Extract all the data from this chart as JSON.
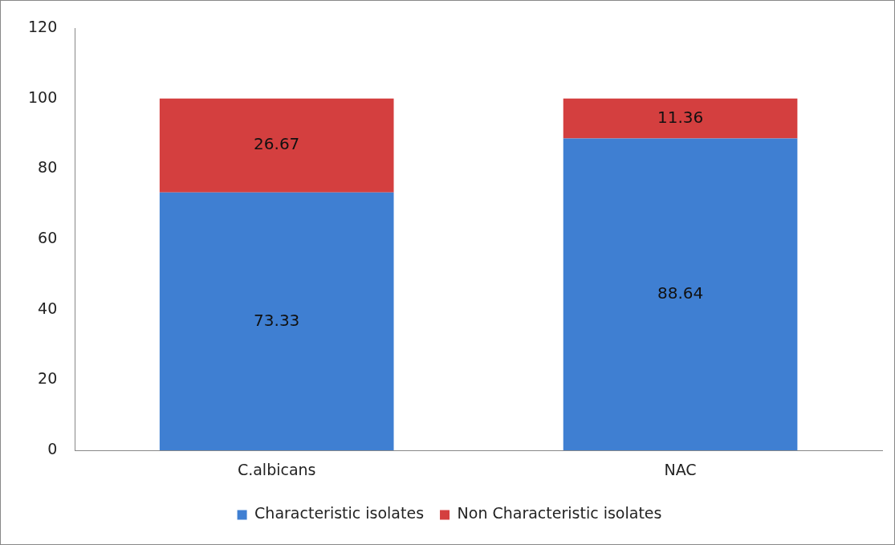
{
  "chart_data": {
    "type": "bar",
    "stacked": true,
    "categories": [
      "C.albicans",
      "NAC"
    ],
    "series": [
      {
        "name": "Characteristic isolates",
        "color": "#3f7fd2",
        "values": [
          73.33,
          88.64
        ]
      },
      {
        "name": "Non Characteristic isolates",
        "color": "#d43f3f",
        "values": [
          26.67,
          11.36
        ]
      }
    ],
    "ylim": [
      0,
      120
    ],
    "yticks": [
      0,
      20,
      40,
      60,
      80,
      100,
      120
    ],
    "grid": false,
    "legend": "bottom",
    "data_labels": true
  }
}
